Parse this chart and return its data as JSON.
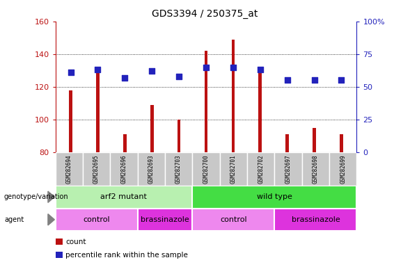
{
  "title": "GDS3394 / 250375_at",
  "samples": [
    "GSM282694",
    "GSM282695",
    "GSM282696",
    "GSM282693",
    "GSM282703",
    "GSM282700",
    "GSM282701",
    "GSM282702",
    "GSM282697",
    "GSM282698",
    "GSM282699"
  ],
  "counts": [
    118,
    130,
    91,
    109,
    100,
    142,
    149,
    130,
    91,
    95,
    91
  ],
  "percentiles": [
    61,
    63,
    57,
    62,
    58,
    65,
    65,
    63,
    55,
    55,
    55
  ],
  "ylim_left": [
    80,
    160
  ],
  "ylim_right": [
    0,
    100
  ],
  "yticks_left": [
    80,
    100,
    120,
    140,
    160
  ],
  "yticks_right": [
    0,
    25,
    50,
    75,
    100
  ],
  "bar_color": "#bb1111",
  "dot_color": "#2222bb",
  "bar_bottom": 80,
  "plot_bg": "#ffffff",
  "genotype_groups": [
    {
      "label": "arf2 mutant",
      "start": 0,
      "end": 5,
      "color": "#b8f0b0"
    },
    {
      "label": "wild type",
      "start": 5,
      "end": 11,
      "color": "#44dd44"
    }
  ],
  "agent_groups": [
    {
      "label": "control",
      "start": 0,
      "end": 3,
      "color": "#ee88ee"
    },
    {
      "label": "brassinazole",
      "start": 3,
      "end": 5,
      "color": "#dd33dd"
    },
    {
      "label": "control",
      "start": 5,
      "end": 8,
      "color": "#ee88ee"
    },
    {
      "label": "brassinazole",
      "start": 8,
      "end": 11,
      "color": "#dd33dd"
    }
  ],
  "legend_items": [
    {
      "label": "count",
      "color": "#bb1111"
    },
    {
      "label": "percentile rank within the sample",
      "color": "#2222bb"
    }
  ],
  "left_label_color": "#bb1111",
  "right_label_color": "#2222bb",
  "sample_box_color": "#c8c8c8",
  "bar_width": 0.12,
  "dot_size": 30
}
